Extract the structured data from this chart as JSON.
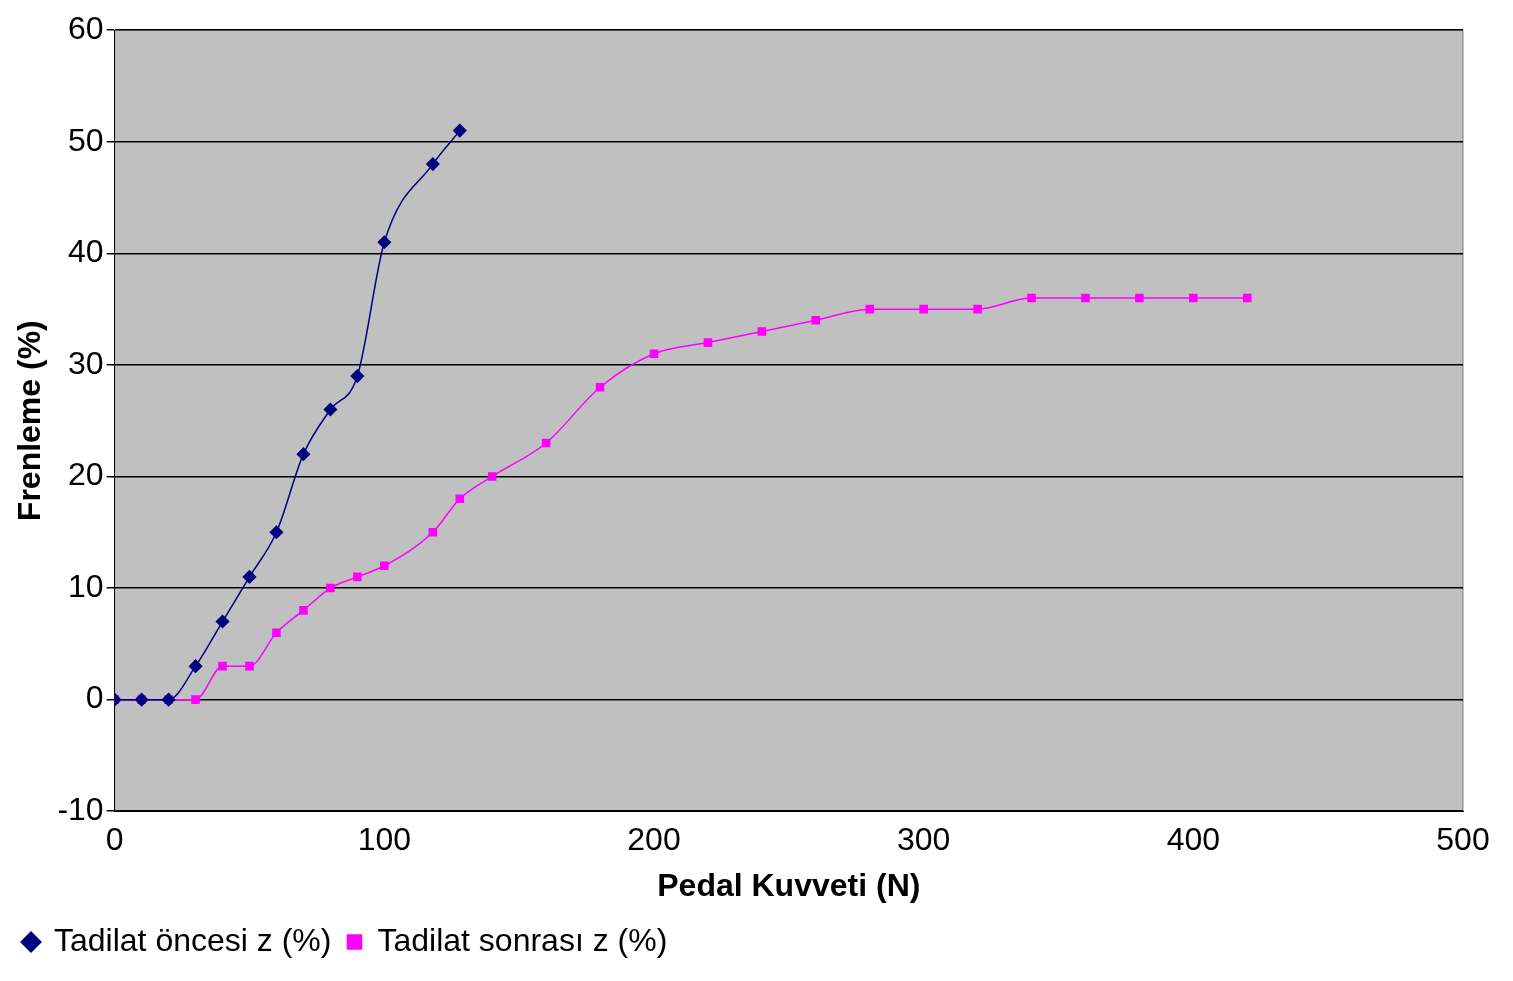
{
  "chart_data": {
    "type": "line",
    "xlabel": "Pedal Kuvveti (N)",
    "ylabel": "Frenleme (%)",
    "xlim": [
      0,
      500
    ],
    "xticks": [
      0,
      100,
      200,
      300,
      400,
      500
    ],
    "ylim": [
      -10,
      60
    ],
    "yticks": [
      -10,
      0,
      10,
      20,
      30,
      40,
      50,
      60
    ],
    "grid": "y",
    "legend": "bottom left",
    "series": [
      {
        "name": "Tadilat öncesi z (%)",
        "color": "#000080",
        "marker": "diamond",
        "x": [
          0,
          10,
          20,
          30,
          40,
          50,
          60,
          70,
          80,
          90,
          100,
          118,
          128
        ],
        "values": [
          0,
          0,
          0,
          3,
          7,
          11,
          15,
          22,
          26,
          29,
          41,
          48,
          51
        ]
      },
      {
        "name": "Tadilat sonrası z (%)",
        "color": "#ff00ff",
        "marker": "square",
        "x": [
          0,
          10,
          20,
          30,
          40,
          50,
          60,
          70,
          80,
          90,
          100,
          118,
          128,
          140,
          160,
          180,
          200,
          220,
          240,
          260,
          280,
          300,
          320,
          340,
          360,
          380,
          400,
          420
        ],
        "values": [
          0,
          0,
          0,
          0,
          3,
          3,
          6,
          8,
          10,
          11,
          12,
          15,
          18,
          20,
          23,
          28,
          31,
          32,
          33,
          34,
          35,
          35,
          35,
          36,
          36,
          36,
          36,
          36
        ]
      }
    ]
  }
}
